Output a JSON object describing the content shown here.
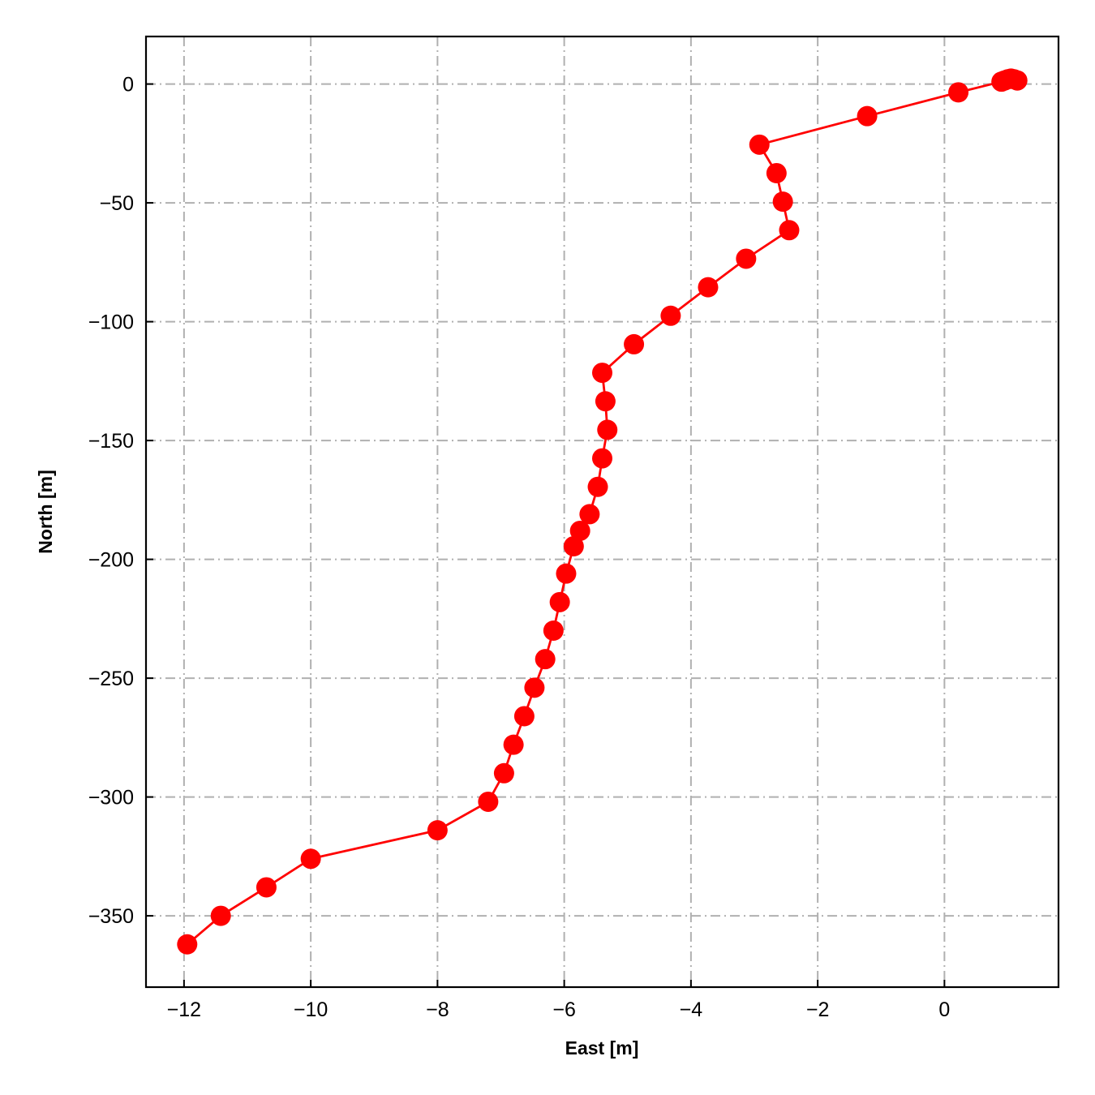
{
  "chart_data": {
    "type": "line",
    "title": "",
    "xlabel": "East [m]",
    "ylabel": "North [m]",
    "xlim": [
      -12.6,
      1.8
    ],
    "ylim": [
      -380,
      20
    ],
    "xticks": [
      -12,
      -10,
      -8,
      -6,
      -4,
      -2,
      0
    ],
    "xtick_labels": [
      "−12",
      "−10",
      "−8",
      "−6",
      "−4",
      "−2",
      "0"
    ],
    "yticks": [
      0,
      -50,
      -100,
      -150,
      -200,
      -250,
      -300,
      -350
    ],
    "ytick_labels": [
      "0",
      "−50",
      "−100",
      "−150",
      "−200",
      "−250",
      "−300",
      "−350"
    ],
    "grid": true,
    "grid_style": "dash-dot",
    "colors": {
      "series": "#ff0000",
      "grid": "#b0b0b0",
      "axes": "#000000"
    },
    "series": [
      {
        "marker": "circle",
        "x": [
          1.15,
          1.1,
          1.05,
          1.0,
          0.95,
          0.9,
          0.22,
          -1.22,
          -2.92,
          -2.65,
          -2.55,
          -2.45,
          -3.13,
          -3.73,
          -4.32,
          -4.9,
          -5.4,
          -5.35,
          -5.32,
          -5.4,
          -5.47,
          -5.6,
          -5.75,
          -5.85,
          -5.97,
          -6.07,
          -6.17,
          -6.3,
          -6.47,
          -6.63,
          -6.8,
          -6.95,
          -7.2,
          -8.0,
          -10.0,
          -10.7,
          -11.42,
          -11.95
        ],
        "y": [
          1.5,
          2.0,
          2.3,
          2.0,
          1.5,
          1.0,
          -3.5,
          -13.5,
          -25.5,
          -37.5,
          -49.5,
          -61.5,
          -73.5,
          -85.5,
          -97.5,
          -109.5,
          -121.5,
          -133.5,
          -145.5,
          -157.5,
          -169.5,
          -181.0,
          -188.0,
          -194.5,
          -206.0,
          -218.0,
          -230.0,
          -242.0,
          -254.0,
          -266.0,
          -278.0,
          -290.0,
          -302.0,
          -314.0,
          -326.0,
          -338.0,
          -350.0,
          -362.0
        ]
      }
    ]
  }
}
